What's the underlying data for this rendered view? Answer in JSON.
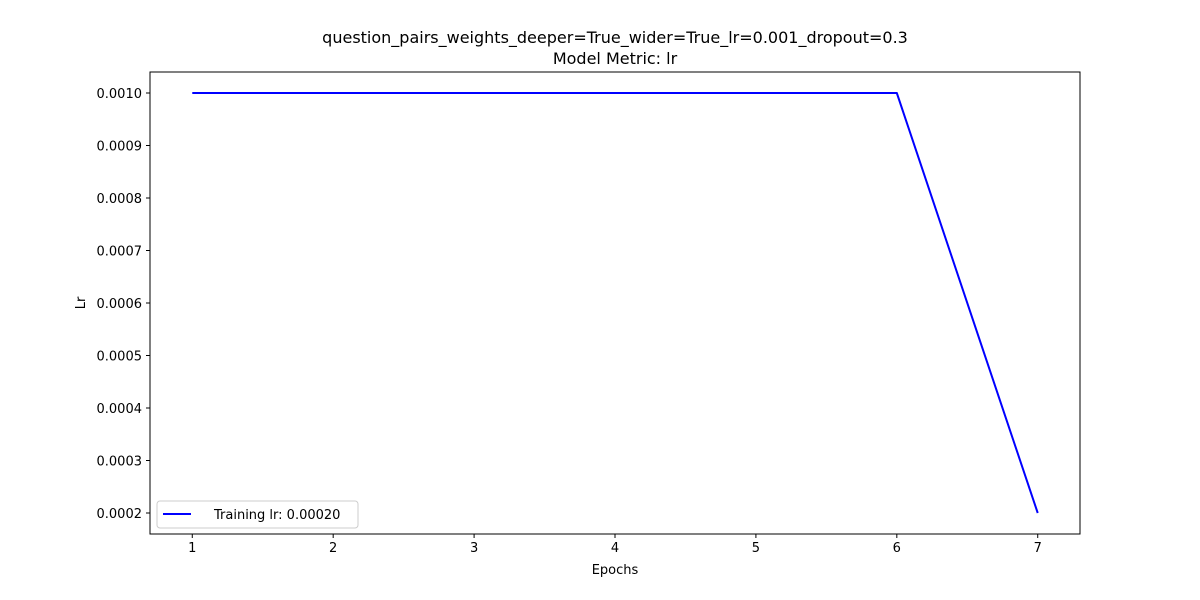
{
  "chart_data": {
    "type": "line",
    "title": "question_pairs_weights_deeper=True_wider=True_lr=0.001_dropout=0.3",
    "subtitle": "Model Metric: lr",
    "xlabel": "Epochs",
    "ylabel": "Lr",
    "xlim": [
      0.7,
      7.3
    ],
    "ylim": [
      0.00016,
      0.00104
    ],
    "x_ticks": [
      1,
      2,
      3,
      4,
      5,
      6,
      7
    ],
    "y_ticks": [
      0.0002,
      0.0003,
      0.0004,
      0.0005,
      0.0006,
      0.0007,
      0.0008,
      0.0009,
      0.001
    ],
    "y_tick_labels": [
      "0.0002",
      "0.0003",
      "0.0004",
      "0.0005",
      "0.0006",
      "0.0007",
      "0.0008",
      "0.0009",
      "0.0010"
    ],
    "grid": false,
    "legend_position": "lower-left",
    "series": [
      {
        "name": "Training lr: 0.00020",
        "color": "#0000ff",
        "x": [
          1,
          2,
          3,
          4,
          5,
          6,
          7
        ],
        "values": [
          0.001,
          0.001,
          0.001,
          0.001,
          0.001,
          0.001,
          0.0002
        ]
      }
    ]
  }
}
